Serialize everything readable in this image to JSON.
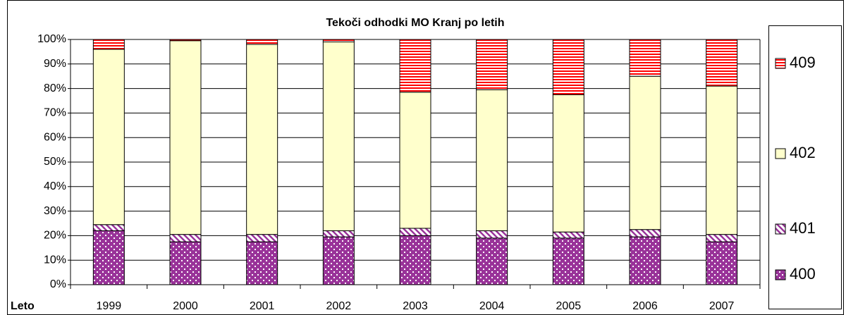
{
  "chart_data": {
    "type": "stacked_bar_percent",
    "title": "Tekoči odhodki MO Kranj po letih",
    "x_label": "Leto",
    "categories": [
      "1999",
      "2000",
      "2001",
      "2002",
      "2003",
      "2004",
      "2005",
      "2006",
      "2007"
    ],
    "series": [
      {
        "name": "400",
        "color": "#993399",
        "pattern": "dots",
        "values": [
          22,
          17.5,
          17.5,
          19.5,
          20,
          19,
          19,
          19.5,
          17.5
        ]
      },
      {
        "name": "401",
        "color": "#993399",
        "pattern": "diagonal",
        "values": [
          2.5,
          3,
          3,
          2.5,
          3,
          3,
          2.5,
          3,
          3
        ]
      },
      {
        "name": "402",
        "color": "#ffffcc",
        "pattern": "solid",
        "values": [
          71.5,
          79,
          77.5,
          77,
          55.5,
          57.5,
          56,
          62.5,
          60.5
        ]
      },
      {
        "name": "409",
        "color": "#ff0000",
        "pattern": "horizontal",
        "values": [
          4,
          0.5,
          2,
          1,
          21.5,
          20.5,
          22.5,
          15,
          19
        ]
      }
    ],
    "ylim": [
      0,
      100
    ],
    "yticks": [
      {
        "value": 0,
        "label": "0%"
      },
      {
        "value": 10,
        "label": "10%"
      },
      {
        "value": 20,
        "label": "20%"
      },
      {
        "value": 30,
        "label": "30%"
      },
      {
        "value": 40,
        "label": "40%"
      },
      {
        "value": 50,
        "label": "50%"
      },
      {
        "value": 60,
        "label": "60%"
      },
      {
        "value": 70,
        "label": "70%"
      },
      {
        "value": 80,
        "label": "80%"
      },
      {
        "value": 90,
        "label": "90%"
      },
      {
        "value": 100,
        "label": "100%"
      }
    ],
    "grid": true,
    "legend": "right"
  }
}
